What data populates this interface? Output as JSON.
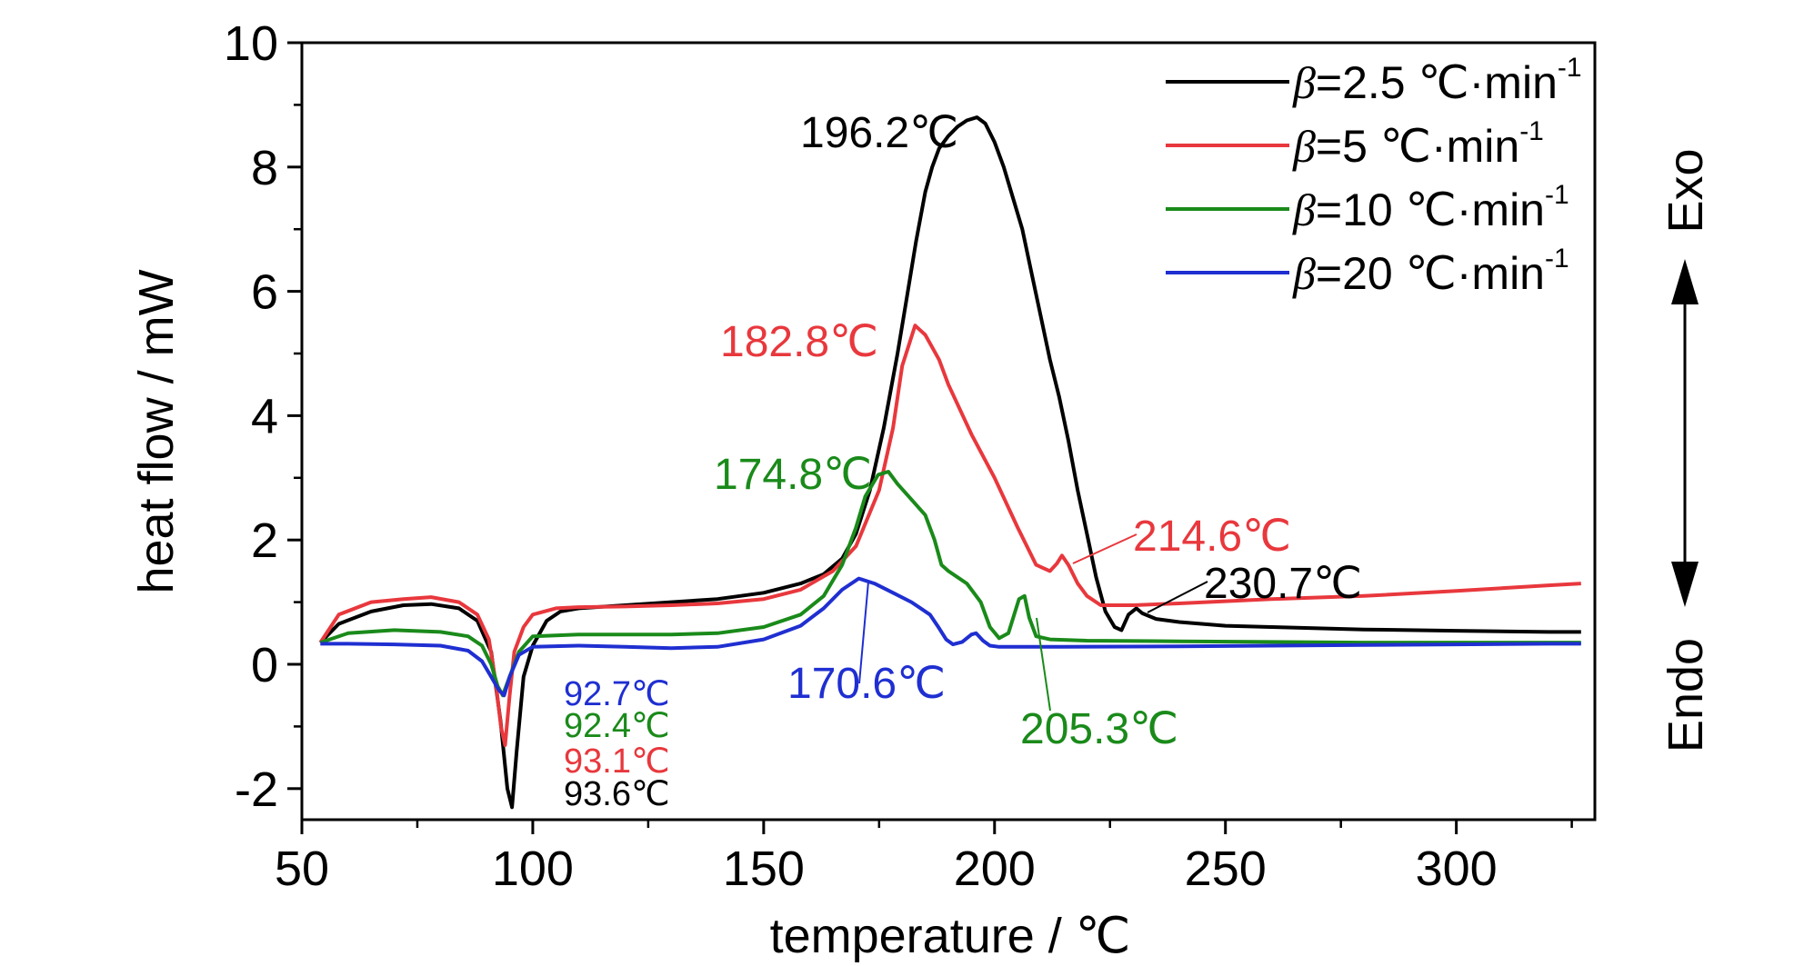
{
  "chart_data": {
    "type": "line",
    "xlabel": "temperature / ℃",
    "ylabel": "heat flow / mW",
    "xlim": [
      50,
      330
    ],
    "ylim": [
      -2.5,
      10
    ],
    "x_ticks": [
      50,
      100,
      150,
      200,
      250,
      300
    ],
    "y_ticks": [
      -2,
      0,
      2,
      4,
      6,
      8,
      10
    ],
    "y_tick_labels": [
      "-2",
      "0",
      "2",
      "4",
      "6",
      "8",
      "10"
    ],
    "grid": false,
    "legend_position": "top-right",
    "series": [
      {
        "name_beta": "β",
        "name_rate": "=2.5 ℃·min",
        "name_sup": "-1",
        "color": "#000000",
        "x": [
          54,
          58,
          65,
          72,
          78,
          84,
          88,
          91,
          93,
          94.5,
          95.5,
          96.5,
          98,
          100,
          103,
          106,
          110,
          120,
          130,
          140,
          150,
          158,
          163,
          167,
          170,
          173,
          176,
          179,
          181,
          183,
          185,
          186.5,
          188,
          190,
          192,
          194,
          196.2,
          198,
          200,
          202,
          204,
          206,
          208,
          210,
          212,
          214,
          216,
          218,
          220,
          222,
          224,
          226,
          227.5,
          229,
          230.7,
          232,
          235,
          240,
          250,
          260,
          280,
          300,
          320,
          327
        ],
        "y": [
          0.35,
          0.65,
          0.85,
          0.95,
          0.97,
          0.9,
          0.7,
          0.2,
          -0.9,
          -2.0,
          -2.3,
          -1.4,
          -0.2,
          0.3,
          0.7,
          0.85,
          0.9,
          0.95,
          1.0,
          1.05,
          1.15,
          1.3,
          1.45,
          1.7,
          2.1,
          2.8,
          3.8,
          5.0,
          5.9,
          6.8,
          7.6,
          8.0,
          8.3,
          8.5,
          8.65,
          8.75,
          8.8,
          8.7,
          8.4,
          8.0,
          7.5,
          7.0,
          6.3,
          5.6,
          4.9,
          4.3,
          3.6,
          2.8,
          2.1,
          1.4,
          0.85,
          0.6,
          0.55,
          0.8,
          0.9,
          0.82,
          0.73,
          0.68,
          0.62,
          0.6,
          0.56,
          0.54,
          0.52,
          0.52
        ]
      },
      {
        "name_beta": "β",
        "name_rate": "=5 ℃·min",
        "name_sup": "-1",
        "color": "#e8383d",
        "x": [
          54,
          58,
          65,
          72,
          78,
          84,
          88,
          90.5,
          92,
          93.1,
          94,
          95,
          96,
          98,
          100,
          105,
          110,
          120,
          130,
          140,
          150,
          158,
          165,
          170,
          175,
          178,
          180,
          182.8,
          185,
          188,
          190,
          195,
          200,
          205,
          209,
          212,
          213.5,
          214.6,
          216,
          218,
          220,
          223,
          230,
          240,
          260,
          280,
          300,
          320,
          327
        ],
        "y": [
          0.35,
          0.8,
          1.0,
          1.05,
          1.08,
          1.0,
          0.8,
          0.4,
          -0.3,
          -1.0,
          -1.3,
          -0.5,
          0.2,
          0.6,
          0.8,
          0.9,
          0.92,
          0.93,
          0.95,
          0.98,
          1.05,
          1.2,
          1.5,
          1.9,
          2.8,
          3.8,
          4.8,
          5.45,
          5.3,
          4.9,
          4.5,
          3.7,
          3.0,
          2.2,
          1.6,
          1.5,
          1.62,
          1.75,
          1.6,
          1.3,
          1.1,
          0.95,
          0.95,
          0.98,
          1.05,
          1.1,
          1.18,
          1.27,
          1.3
        ]
      },
      {
        "name_beta": "β",
        "name_rate": "=10 ℃·min",
        "name_sup": "-1",
        "color": "#1a8a1a",
        "x": [
          54,
          60,
          70,
          80,
          86,
          89,
          91,
          92.4,
          93.5,
          95,
          97,
          100,
          110,
          120,
          130,
          140,
          150,
          158,
          163,
          167,
          170,
          172,
          174.8,
          177,
          179,
          182,
          185,
          187,
          188.5,
          190,
          194,
          197,
          199,
          201,
          203,
          205.3,
          206.5,
          207.5,
          209,
          212,
          220,
          240,
          260,
          280,
          300,
          320,
          327
        ],
        "y": [
          0.35,
          0.5,
          0.55,
          0.52,
          0.45,
          0.3,
          0.0,
          -0.35,
          -0.5,
          -0.2,
          0.2,
          0.45,
          0.48,
          0.48,
          0.48,
          0.5,
          0.6,
          0.8,
          1.1,
          1.6,
          2.2,
          2.7,
          3.05,
          3.1,
          2.9,
          2.65,
          2.4,
          2.0,
          1.6,
          1.5,
          1.3,
          1.0,
          0.6,
          0.42,
          0.5,
          1.05,
          1.1,
          0.75,
          0.45,
          0.4,
          0.38,
          0.37,
          0.36,
          0.35,
          0.35,
          0.35,
          0.35
        ]
      },
      {
        "name_beta": "β",
        "name_rate": "=20 ℃·min",
        "name_sup": "-1",
        "color": "#1f2fd1",
        "x": [
          54,
          60,
          70,
          80,
          86,
          89,
          91,
          92.7,
          93.8,
          95,
          97,
          100,
          110,
          120,
          130,
          140,
          150,
          158,
          163,
          167,
          170.6,
          174,
          178,
          182,
          186,
          188,
          189.5,
          191,
          193,
          195,
          196,
          197.5,
          199,
          201,
          205,
          215,
          240,
          260,
          280,
          300,
          320,
          327
        ],
        "y": [
          0.33,
          0.33,
          0.32,
          0.3,
          0.22,
          0.05,
          -0.2,
          -0.42,
          -0.5,
          -0.2,
          0.15,
          0.28,
          0.3,
          0.28,
          0.26,
          0.28,
          0.4,
          0.62,
          0.9,
          1.2,
          1.38,
          1.3,
          1.15,
          1.0,
          0.8,
          0.58,
          0.4,
          0.32,
          0.36,
          0.48,
          0.5,
          0.38,
          0.3,
          0.28,
          0.28,
          0.28,
          0.29,
          0.3,
          0.31,
          0.32,
          0.33,
          0.33
        ]
      }
    ],
    "annotations": [
      {
        "text": "196.2℃",
        "color": "#000000",
        "series": 0
      },
      {
        "text": "182.8℃",
        "color": "#e8383d",
        "series": 1
      },
      {
        "text": "174.8℃",
        "color": "#1a8a1a",
        "series": 2
      },
      {
        "text": "170.6℃",
        "color": "#1f2fd1",
        "series": 3
      },
      {
        "text": "214.6℃",
        "color": "#e8383d",
        "series": 1
      },
      {
        "text": "230.7℃",
        "color": "#000000",
        "series": 0
      },
      {
        "text": "205.3℃",
        "color": "#1a8a1a",
        "series": 2
      },
      {
        "text": "92.7℃",
        "color": "#1f2fd1",
        "series": 3
      },
      {
        "text": "92.4℃",
        "color": "#1a8a1a",
        "series": 2
      },
      {
        "text": "93.1℃",
        "color": "#e8383d",
        "series": 1
      },
      {
        "text": "93.6℃",
        "color": "#000000",
        "series": 0
      }
    ],
    "direction_labels": {
      "up": "Exo",
      "down": "Endo"
    }
  }
}
